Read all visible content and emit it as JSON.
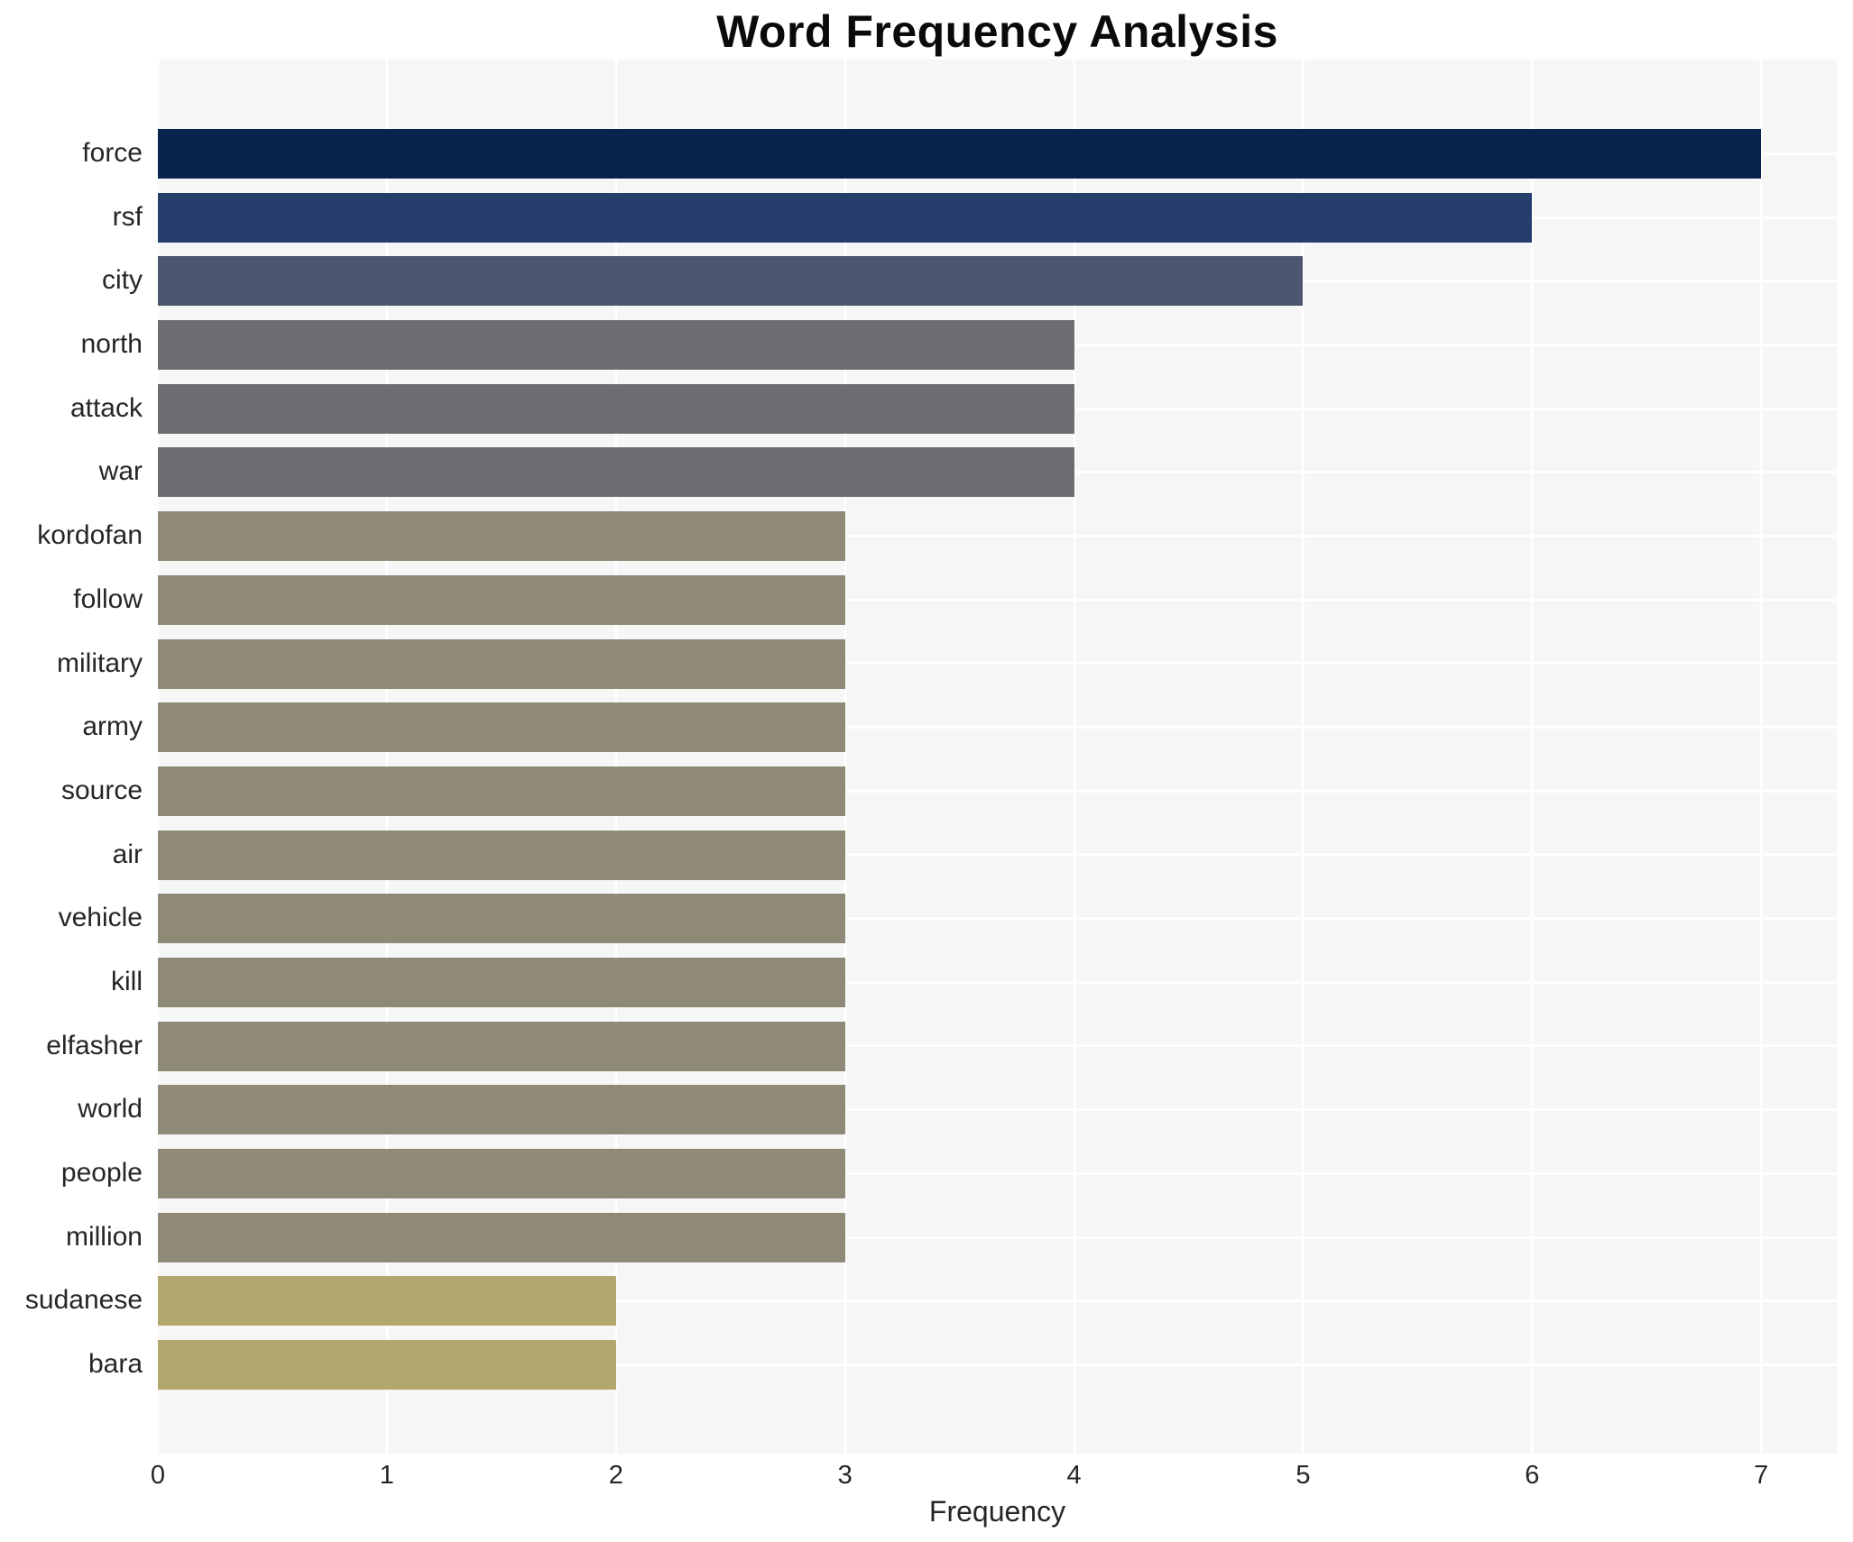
{
  "chart_data": {
    "type": "bar",
    "orientation": "horizontal",
    "title": "Word Frequency Analysis",
    "xlabel": "Frequency",
    "ylabel": "",
    "categories": [
      "force",
      "rsf",
      "city",
      "north",
      "attack",
      "war",
      "kordofan",
      "follow",
      "military",
      "army",
      "source",
      "air",
      "vehicle",
      "kill",
      "elfasher",
      "world",
      "people",
      "million",
      "sudanese",
      "bara"
    ],
    "values": [
      7,
      6,
      5,
      4,
      4,
      4,
      3,
      3,
      3,
      3,
      3,
      3,
      3,
      3,
      3,
      3,
      3,
      3,
      2,
      2
    ],
    "bar_colors": [
      "#08234d",
      "#253e6c",
      "#4d566f",
      "#6c6d70",
      "#6c6d70",
      "#6c6d70",
      "#8f8977",
      "#8f8977",
      "#8f8977",
      "#8f8977",
      "#8f8977",
      "#8f8977",
      "#8f8977",
      "#8f8977",
      "#8f8977",
      "#8f8977",
      "#8f8977",
      "#8f8977",
      "#b2a76d",
      "#b2a76d"
    ],
    "xticks": [
      "0",
      "1",
      "2",
      "3",
      "4",
      "5",
      "6",
      "7"
    ],
    "xlim": [
      0,
      7.33
    ],
    "grid": true,
    "legend": false,
    "plot_background": "#f6f6f6",
    "grid_color": "#ffffff",
    "text_color": "#262626"
  }
}
